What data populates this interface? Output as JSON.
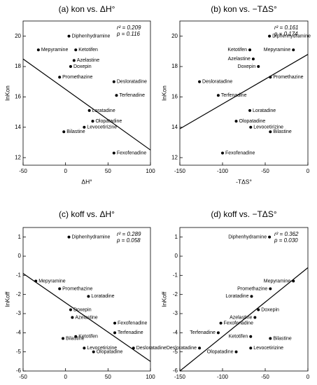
{
  "chart_data": [
    {
      "type": "scatter",
      "title": "(a) kon vs. ΔH°",
      "xlabel": "ΔH°",
      "ylabel": "lnKon",
      "xlim": [
        -50,
        100
      ],
      "xticks": [
        -50,
        0,
        50,
        100
      ],
      "ylim": [
        11.5,
        21
      ],
      "yticks": [
        12,
        14,
        16,
        18,
        20
      ],
      "labels": [
        "Diphenhydramine",
        "Mepyramine",
        "Ketotifen",
        "Azelastine",
        "Doxepin",
        "Promethazine",
        "Desloratadine",
        "Terfenadine",
        "Loratadine",
        "Olopatadine",
        "Levocetirizine",
        "Bilastine",
        "Fexofenadine"
      ],
      "x": [
        4,
        -32,
        12,
        10,
        6,
        -7,
        57,
        60,
        28,
        32,
        22,
        -2,
        57
      ],
      "values": [
        20,
        19.1,
        19.1,
        18.4,
        18.0,
        17.3,
        17.0,
        16.1,
        15.1,
        14.4,
        14.0,
        13.7,
        12.3
      ],
      "fit": {
        "x": [
          -50,
          100
        ],
        "y": [
          18.5,
          12.5
        ]
      },
      "annotations": [
        "r² = 0.209",
        "p = 0.116"
      ],
      "color": "#000000"
    },
    {
      "type": "scatter",
      "title": "(b) kon vs. −TΔS°",
      "xlabel": "-TΔS°",
      "ylabel": "lnKon",
      "xlim": [
        -150,
        0
      ],
      "xticks": [
        -150,
        -100,
        -50,
        0
      ],
      "ylim": [
        11.5,
        21
      ],
      "yticks": [
        12,
        14,
        16,
        18,
        20
      ],
      "labels": [
        "Diphenhydramine",
        "Mepyramine",
        "Ketotifen",
        "Azelastine",
        "Doxepin",
        "Promethazine",
        "Desloratadine",
        "Terfenadine",
        "Loratadine",
        "Olopatadine",
        "Levocetirizine",
        "Bilastine",
        "Fexofenadine"
      ],
      "x": [
        -45,
        -17,
        -68,
        -64,
        -58,
        -44,
        -127,
        -105,
        -68,
        -84,
        -67,
        -44,
        -100
      ],
      "values": [
        20,
        19.1,
        19.1,
        18.5,
        18.0,
        17.3,
        17.0,
        16.1,
        15.1,
        14.4,
        14.0,
        13.7,
        12.3
      ],
      "fit": {
        "x": [
          -150,
          0
        ],
        "y": [
          13.9,
          18.8
        ]
      },
      "annotations": [
        "r² = 0.161",
        "p = 0.174"
      ],
      "color": "#000000"
    },
    {
      "type": "scatter",
      "title": "(c) koff vs. ΔH°",
      "xlabel": "ΔH°",
      "ylabel": "lnKoff",
      "xlim": [
        -50,
        100
      ],
      "xticks": [
        -50,
        0,
        50,
        100
      ],
      "ylim": [
        -6,
        1.5
      ],
      "yticks": [
        -6,
        -5,
        -4,
        -3,
        -2,
        -1,
        0,
        1
      ],
      "labels": [
        "Diphenhydramine",
        "Mepyramine",
        "Promethazine",
        "Loratadine",
        "Doxepin",
        "Azelastine",
        "Fexofenadine",
        "Terfenadine",
        "Ketotifen",
        "Bilastine",
        "Levocetirizine",
        "Olopatadine",
        "Desloratadine"
      ],
      "x": [
        4,
        -35,
        -7,
        27,
        6,
        8,
        58,
        58,
        12,
        -3,
        22,
        33,
        80
      ],
      "values": [
        1.0,
        -1.3,
        -1.7,
        -2.1,
        -2.8,
        -3.2,
        -3.5,
        -4.0,
        -4.2,
        -4.3,
        -4.8,
        -5.0,
        -4.8
      ],
      "fit": {
        "x": [
          -50,
          100
        ],
        "y": [
          -0.9,
          -5.5
        ]
      },
      "annotations": [
        "r² = 0.289",
        "p = 0.058"
      ],
      "color": "#000000"
    },
    {
      "type": "scatter",
      "title": "(d) koff vs. −TΔS°",
      "xlabel": "-TΔS°",
      "ylabel": "lnKoff",
      "xlim": [
        -150,
        0
      ],
      "xticks": [
        -150,
        -100,
        -50,
        0
      ],
      "ylim": [
        -6,
        1.5
      ],
      "yticks": [
        -6,
        -5,
        -4,
        -3,
        -2,
        -1,
        0,
        1
      ],
      "labels": [
        "Diphenhydramine",
        "Mepyramine",
        "Promethazine",
        "Loratadine",
        "Doxepin",
        "Azelastine",
        "Fexofenadine",
        "Terfenadine",
        "Ketotifen",
        "Bilastine",
        "Levocetirizine",
        "Olopatadine",
        "Desloratadine"
      ],
      "x": [
        -45,
        -17,
        -44,
        -66,
        -58,
        -62,
        -102,
        -105,
        -67,
        -44,
        -67,
        -84,
        -127
      ],
      "values": [
        1.0,
        -1.3,
        -1.7,
        -2.1,
        -2.8,
        -3.2,
        -3.5,
        -4.0,
        -4.2,
        -4.3,
        -4.8,
        -5.0,
        -4.8
      ],
      "fit": {
        "x": [
          -150,
          0
        ],
        "y": [
          -6.0,
          -0.6
        ]
      },
      "annotations": [
        "r² = 0.362",
        "p = 0.030"
      ],
      "color": "#000000"
    }
  ]
}
